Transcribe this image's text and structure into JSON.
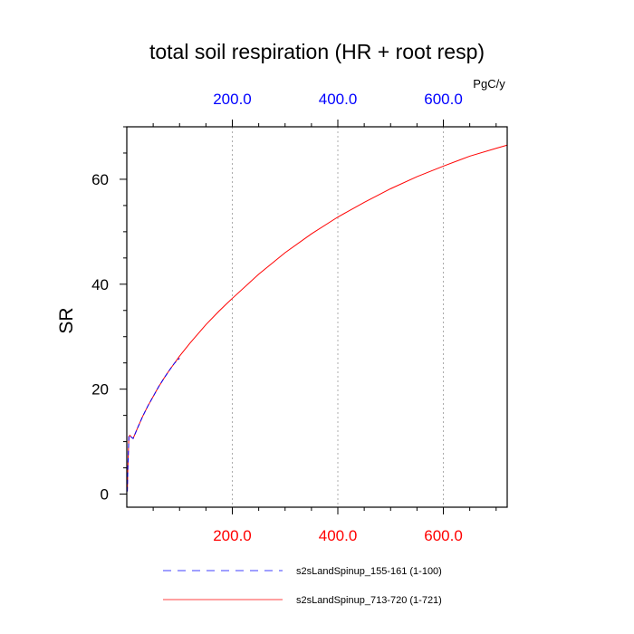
{
  "chart_data": {
    "type": "line",
    "title": "total soil respiration (HR + root resp)",
    "ylabel": "SR",
    "top_axis_unit": "PgC/y",
    "xlim": [
      0,
      721
    ],
    "ylim": [
      -2.5,
      70
    ],
    "x_ticks": [
      200,
      400,
      600
    ],
    "x_tick_labels": [
      "200.0",
      "400.0",
      "600.0"
    ],
    "y_ticks": [
      0,
      20,
      40,
      60
    ],
    "y_tick_labels": [
      "0",
      "20",
      "40",
      "60"
    ],
    "y_minor_step": 5,
    "x_minor_step": 50,
    "grid": "vertical dotted at major x ticks",
    "bottom_tick_color": "#ff0000",
    "top_tick_color": "#0000ff",
    "series": [
      {
        "name": "s2sLandSpinup_713-720 (1-721)",
        "color": "#ff0000",
        "style": "solid",
        "x": [
          1,
          2,
          4,
          6,
          8,
          12,
          20,
          30,
          40,
          50,
          60,
          70,
          80,
          90,
          100,
          120,
          150,
          175,
          200,
          250,
          300,
          350,
          400,
          450,
          500,
          550,
          600,
          650,
          700,
          721
        ],
        "y": [
          0.5,
          5,
          11,
          11.2,
          10.9,
          10.6,
          12.5,
          14.8,
          16.8,
          18.6,
          20.4,
          22.0,
          23.5,
          24.9,
          26.3,
          28.8,
          32.3,
          34.9,
          37.3,
          41.9,
          46.0,
          49.6,
          52.8,
          55.6,
          58.2,
          60.5,
          62.5,
          64.4,
          65.9,
          66.5
        ]
      },
      {
        "name": "s2sLandSpinup_155-161 (1-100)",
        "color": "#0000ff",
        "style": "dashed",
        "x": [
          1,
          2,
          4,
          6,
          8,
          12,
          20,
          30,
          40,
          50,
          60,
          70,
          80,
          90,
          100
        ],
        "y": [
          0.5,
          5,
          11,
          11.2,
          10.9,
          10.6,
          12.5,
          14.8,
          16.8,
          18.6,
          20.4,
          22.0,
          23.5,
          24.9,
          25.9
        ]
      }
    ],
    "legend": [
      {
        "label": "s2sLandSpinup_155-161 (1-100)",
        "color": "#0000ff",
        "style": "dashed"
      },
      {
        "label": "s2sLandSpinup_713-720 (1-721)",
        "color": "#ff0000",
        "style": "solid"
      }
    ],
    "legend_placement": "below plot"
  }
}
